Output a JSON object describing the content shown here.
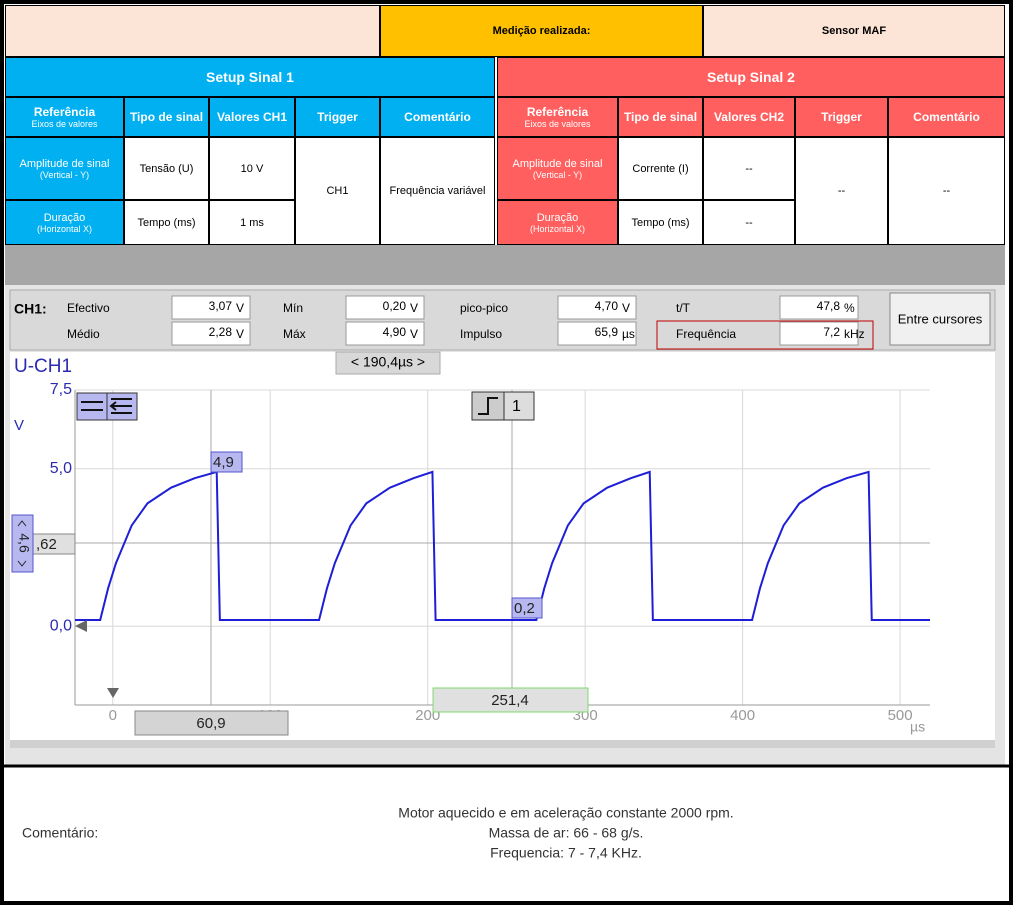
{
  "header": {
    "measurement_label": "Medição realizada:",
    "measurement_value": "Sensor MAF"
  },
  "setup1": {
    "title": "Setup Sinal 1",
    "headers": [
      "Referência",
      "Tipo de sinal",
      "Valores CH1",
      "Trigger",
      "Comentário"
    ],
    "header_sub": "Eixos de valores",
    "rows": [
      {
        "ref": "Amplitude de sinal",
        "ref_sub": "(Vertical - Y)",
        "type": "Tensão (U)",
        "value": "10 V"
      },
      {
        "ref": "Duração",
        "ref_sub": "(Horizontal X)",
        "type": "Tempo (ms)",
        "value": "1 ms"
      }
    ],
    "trigger": "CH1",
    "comment": "Frequência variável"
  },
  "setup2": {
    "title": "Setup Sinal 2",
    "headers": [
      "Referência",
      "Tipo de sinal",
      "Valores CH2",
      "Trigger",
      "Comentário"
    ],
    "header_sub": "Eixos de valores",
    "rows": [
      {
        "ref": "Amplitude de sinal",
        "ref_sub": "(Vertical - Y)",
        "type": "Corrente (I)",
        "value": "--"
      },
      {
        "ref": "Duração",
        "ref_sub": "(Horizontal X)",
        "type": "Tempo (ms)",
        "value": "--"
      }
    ],
    "trigger": "--",
    "comment": "--"
  },
  "scope": {
    "channel": "CH1:",
    "measurements": [
      {
        "label": "Efectivo",
        "value": "3,07",
        "unit": "V"
      },
      {
        "label": "Médio",
        "value": "2,28",
        "unit": "V"
      },
      {
        "label": "Mín",
        "value": "0,20",
        "unit": "V"
      },
      {
        "label": "Máx",
        "value": "4,90",
        "unit": "V"
      },
      {
        "label": "pico-pico",
        "value": "4,70",
        "unit": "V"
      },
      {
        "label": "Impulso",
        "value": "65,9",
        "unit": "µs"
      },
      {
        "label": "t/T",
        "value": "47,8",
        "unit": "%"
      },
      {
        "label": "Frequência",
        "value": "7,2",
        "unit": "kHz"
      }
    ],
    "button": "Entre cursores",
    "trace_label": "U-CH1",
    "y_unit": "V",
    "x_unit": "µs",
    "cursor_span": "< 190,4µs >",
    "trigger_channel": "1",
    "cursor_labels": [
      "4,9",
      "0,2",
      ",62",
      "4,6",
      "60,9",
      "251,4"
    ],
    "xlim": [
      -24,
      519
    ],
    "ylim": [
      -2.5,
      7.5
    ],
    "xticks": [
      0,
      100,
      200,
      300,
      400,
      500
    ],
    "yticks": [
      {
        "value": 0,
        "label": "0,0"
      },
      {
        "value": 5,
        "label": "5,0"
      },
      {
        "value": 7.5,
        "label": "7,5"
      }
    ],
    "color": "#1e1ed8",
    "waveform": {
      "t": [
        -24,
        -8,
        -3,
        2,
        12,
        22,
        37,
        52,
        66,
        68,
        131,
        136,
        141,
        151,
        161,
        176,
        191,
        203,
        205,
        269,
        274,
        279,
        289,
        299,
        314,
        329,
        341,
        343,
        406,
        411,
        416,
        426,
        436,
        451,
        466,
        480,
        482,
        519
      ],
      "v": [
        0.2,
        0.2,
        1.2,
        2.0,
        3.2,
        3.9,
        4.4,
        4.7,
        4.9,
        0.2,
        0.2,
        1.2,
        2.0,
        3.2,
        3.9,
        4.4,
        4.7,
        4.9,
        0.2,
        0.2,
        1.2,
        2.0,
        3.2,
        3.9,
        4.4,
        4.7,
        4.9,
        0.2,
        0.2,
        1.2,
        2.0,
        3.2,
        3.9,
        4.4,
        4.7,
        4.9,
        0.2,
        0.2
      ]
    }
  },
  "comment": {
    "label": "Comentário:",
    "lines": [
      "Motor aquecido e em aceleração constante 2000 rpm.",
      "Massa de ar: 66 - 68 g/s.",
      "Frequencia: 7 - 7,4 KHz."
    ]
  }
}
